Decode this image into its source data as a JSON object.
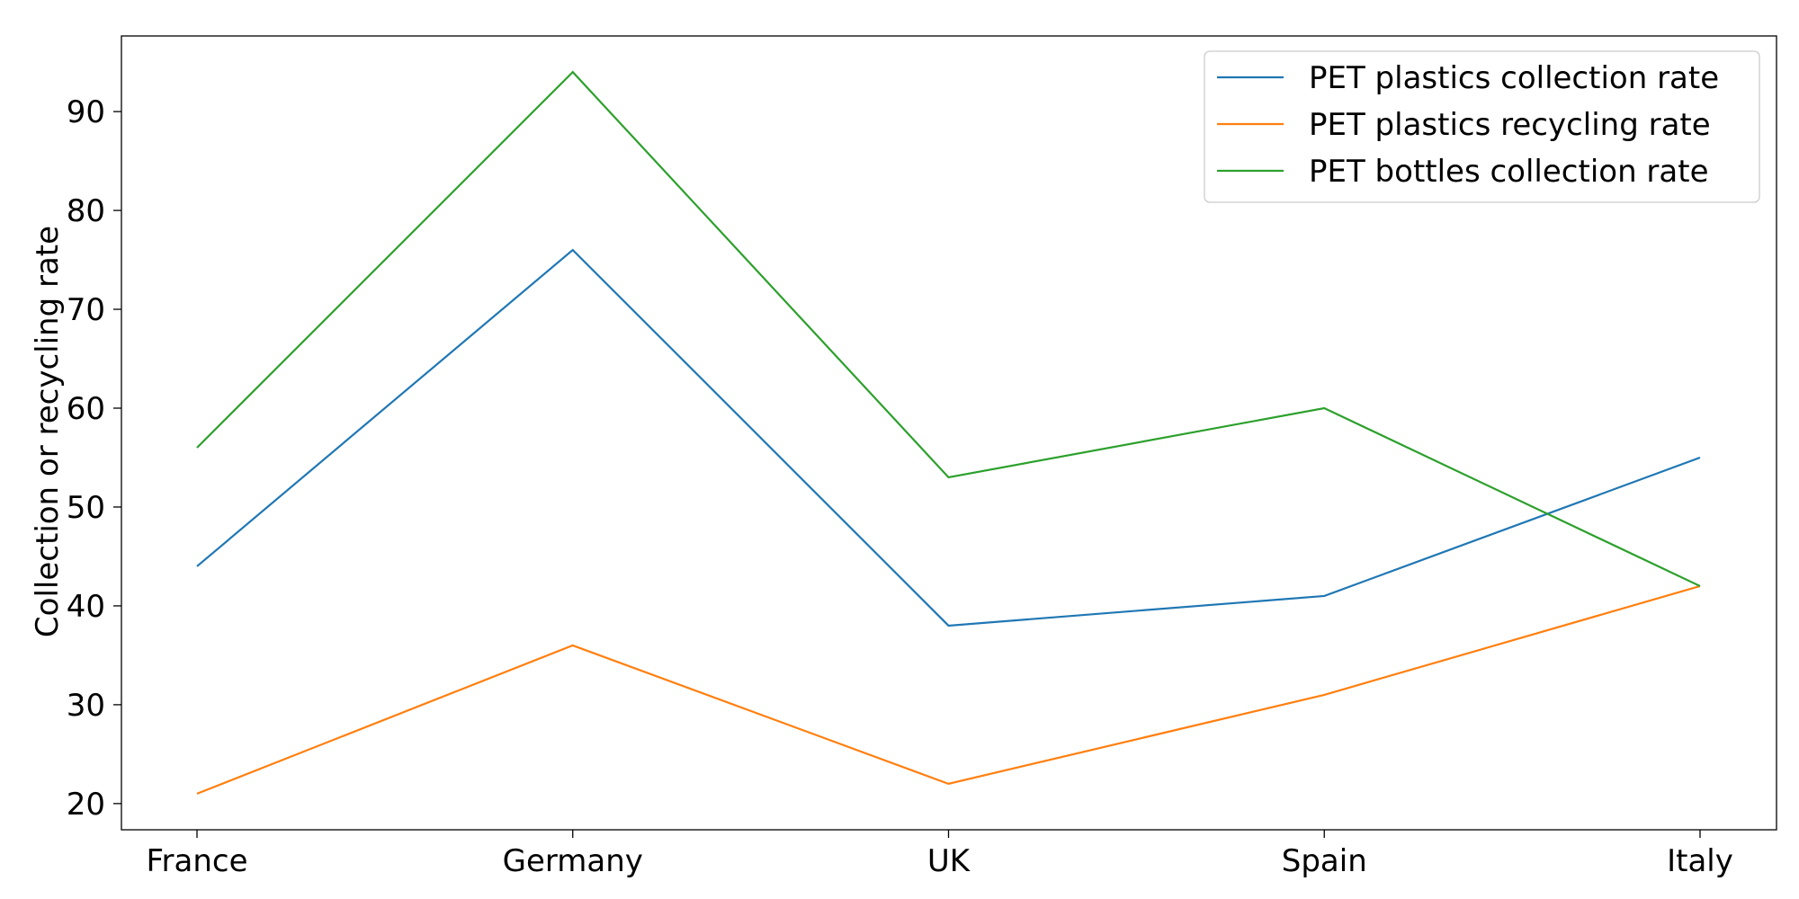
{
  "chart_data": {
    "type": "line",
    "title": "",
    "xlabel": "",
    "ylabel": "Collection or recycling rate",
    "categories": [
      "France",
      "Germany",
      "UK",
      "Spain",
      "Italy"
    ],
    "series": [
      {
        "name": "PET plastics collection rate",
        "color": "#1f77b4",
        "values": [
          44,
          76,
          38,
          41,
          55
        ]
      },
      {
        "name": "PET plastics recycling rate",
        "color": "#ff7f0e",
        "values": [
          21,
          36,
          22,
          31,
          42
        ]
      },
      {
        "name": "PET bottles collection rate",
        "color": "#2ca02c",
        "values": [
          56,
          94,
          53,
          60,
          42
        ]
      }
    ],
    "ylim": [
      17.35,
      97.65
    ],
    "yticks": [
      20,
      30,
      40,
      50,
      60,
      70,
      80,
      90
    ],
    "grid": false,
    "legend_position": "top-right"
  }
}
